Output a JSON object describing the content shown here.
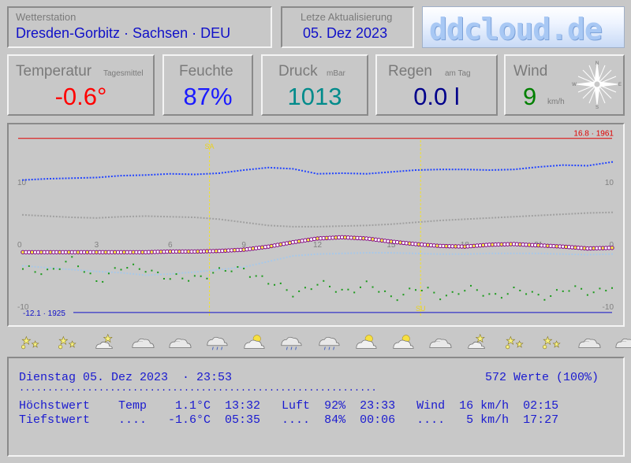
{
  "station": {
    "label": "Wetterstation",
    "value": "Dresden-Gorbitz · Sachsen · DEU"
  },
  "update": {
    "label": "Letze Aktualisierung",
    "value": "05. Dez 2023"
  },
  "logo": {
    "text": "ddcloud.de"
  },
  "tiles": {
    "temperature": {
      "title": "Temperatur",
      "sub": "Tagesmittel",
      "value": "-0.6°",
      "color": "#ff0000"
    },
    "humidity": {
      "title": "Feuchte",
      "value": "87%",
      "color": "#1a1aff"
    },
    "pressure": {
      "title": "Druck",
      "sub": "mBar",
      "value": "1013",
      "color": "#008b8b"
    },
    "rain": {
      "title": "Regen",
      "sub": "am Tag",
      "value": "0.0 l",
      "color": "#00008b"
    },
    "wind": {
      "title": "Wind",
      "value": "9",
      "unit": "km/h",
      "color": "#008000",
      "compass": {
        "n": "N",
        "s": "S",
        "e": "E",
        "w": "W"
      }
    }
  },
  "chart_data": {
    "type": "line",
    "max_record": "16.8 · 1961",
    "min_record": "-12.1 · 1925",
    "sunrise_label": "SA",
    "sunset_label": "SU",
    "y_ticks_left": [
      "10",
      "0",
      "-10"
    ],
    "y_ticks_right": [
      "10",
      "0",
      "-10"
    ],
    "hour_ticks": [
      "3",
      "6",
      "9",
      "12",
      "15",
      "18",
      "21"
    ],
    "hours": [
      0,
      1,
      2,
      3,
      4,
      5,
      6,
      7,
      8,
      9,
      10,
      11,
      12,
      13,
      14,
      15,
      16,
      17,
      18,
      19,
      20,
      21,
      22,
      23,
      24
    ],
    "series": [
      {
        "values": [
          10.3,
          10.5,
          10.6,
          10.7,
          11.0,
          11.1,
          11.3,
          11.2,
          11.4,
          11.9,
          12.3,
          12.1,
          11.3,
          11.4,
          11.3,
          11.6,
          11.9,
          12.0,
          12.0,
          11.9,
          12.0,
          12.4,
          12.7,
          12.6,
          13.2
        ],
        "color": "#2244ff"
      },
      {
        "values": [
          4.7,
          4.5,
          4.3,
          4.2,
          4.4,
          4.5,
          4.4,
          4.3,
          4.0,
          3.5,
          3.0,
          2.8,
          2.8,
          2.9,
          3.0,
          3.2,
          3.5,
          3.8,
          4.0,
          4.2,
          4.4,
          4.6,
          4.8,
          5.0,
          5.1
        ],
        "color": "#a0a0a0"
      },
      {
        "values": [
          -1.3,
          -1.3,
          -1.3,
          -1.3,
          -1.3,
          -1.3,
          -1.2,
          -1.2,
          -1.1,
          -0.9,
          -0.4,
          0.3,
          0.9,
          1.1,
          0.9,
          0.4,
          0.0,
          -0.3,
          -0.4,
          -0.1,
          0.0,
          -0.2,
          -0.4,
          -0.7,
          -0.6
        ],
        "color": "#800080"
      },
      {
        "values": [
          -3.5,
          -3.8,
          -4.1,
          -4.4,
          -4.6,
          -5.0,
          -4.8,
          -4.5,
          -4.1,
          -3.7,
          -2.8,
          -1.9,
          -1.6,
          -1.5,
          -1.4,
          -1.4,
          -1.5,
          -1.6,
          -1.6,
          -1.5,
          -1.5,
          -1.5,
          -1.6,
          -1.7,
          -1.6
        ],
        "color": "#a8c8e8"
      },
      {
        "values": [
          -4.5,
          -4.0,
          -3.0,
          -5.5,
          -4.2,
          -3.5,
          -6.0,
          -5.0,
          -4.8,
          -3.6,
          -6.5,
          -7.5,
          -6.8,
          -7.2,
          -6.9,
          -8.2,
          -7.5,
          -8.0,
          -7.6,
          -7.9,
          -7.8,
          -8.1,
          -7.7,
          -7.4,
          -7.0
        ],
        "color": "#1a9a1a"
      }
    ],
    "ylim": [
      -11,
      17
    ]
  },
  "icons": [
    "sunny-stars",
    "sunny-stars",
    "partly-cloudy",
    "cloudy",
    "cloudy",
    "rain-cloud",
    "partly-sunny-cloud",
    "rain-cloud",
    "rain-cloud",
    "partly-sunny-cloud",
    "partly-sunny-cloud",
    "cloudy",
    "partly-cloudy",
    "sunny-stars",
    "sunny-stars",
    "cloudy",
    "cloudy"
  ],
  "summary": {
    "date_line": "Dienstag 05. Dez 2023  · 23:53",
    "count": "572 Werte (100%)",
    "rule": "...............................................................",
    "max_row": "Höchstwert    Temp    1.1°C  13:32   Luft  92%  23:33   Wind  16 km/h  02:15",
    "min_row": "Tiefstwert    ....   -1.6°C  05:35   ....  84%  00:06   ....   5 km/h  17:27"
  }
}
